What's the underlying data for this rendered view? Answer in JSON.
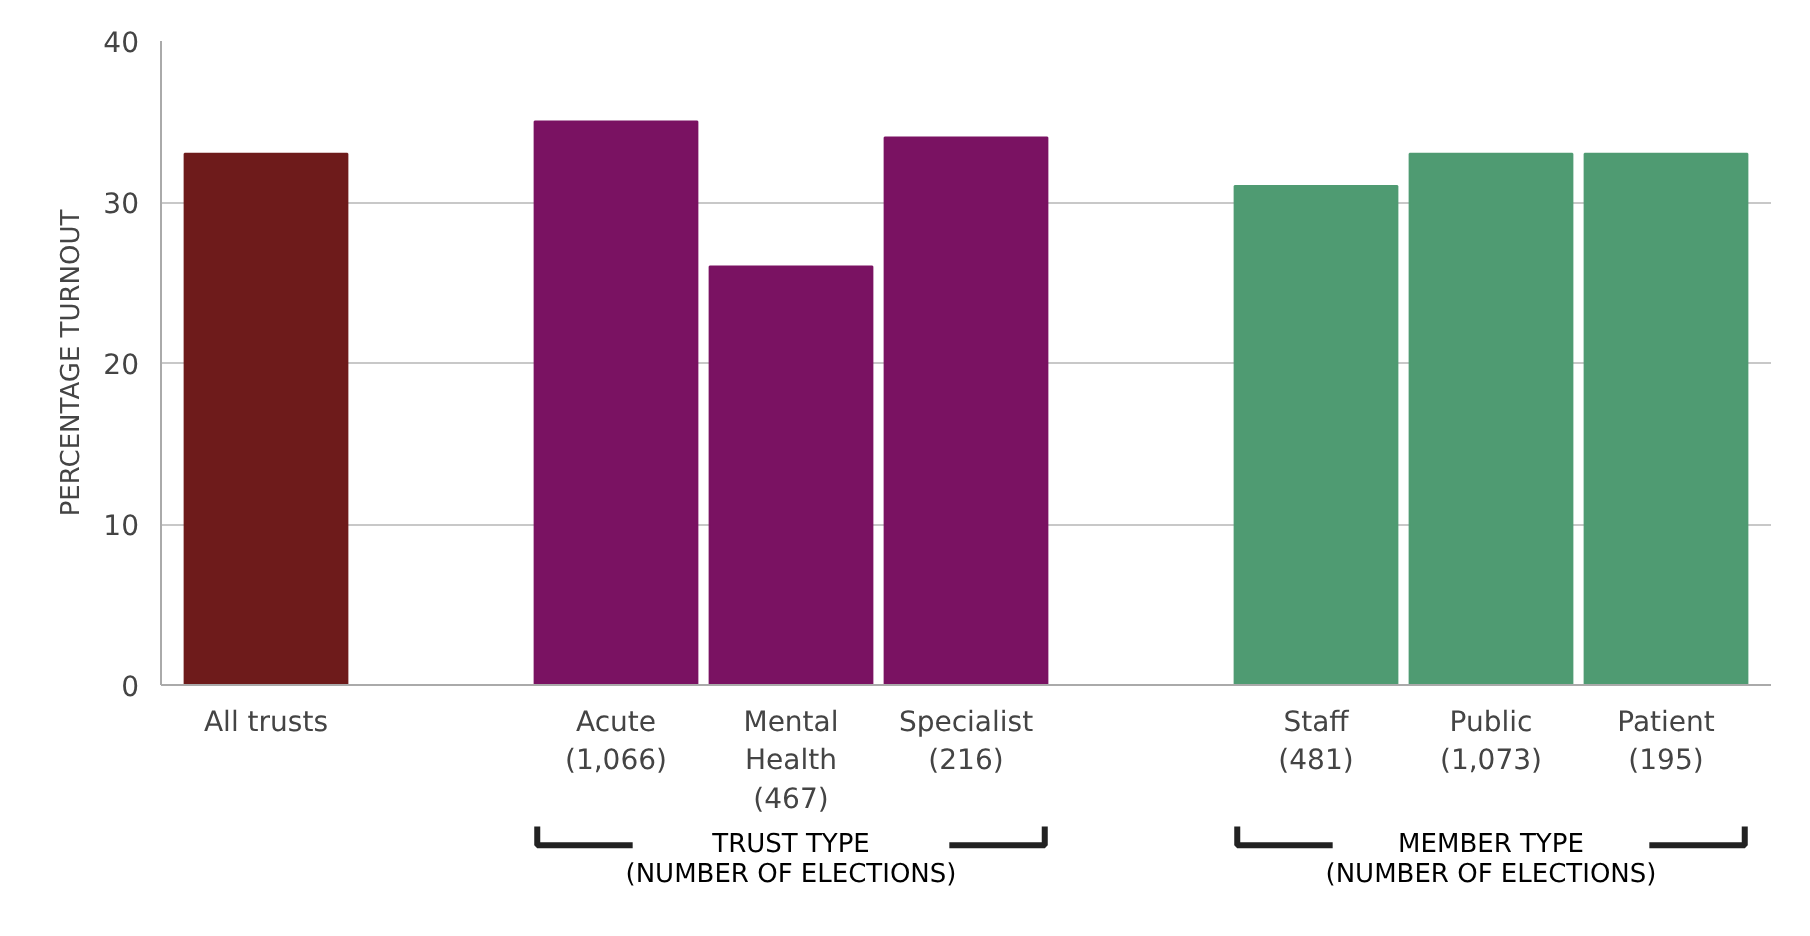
{
  "chart_data": {
    "type": "bar",
    "categories": [
      "All trusts",
      null,
      "Acute\n(1,066)",
      "Mental\nHealth\n(467)",
      "Specialist\n(216)",
      null,
      "Staff\n(481)",
      "Public\n(1,073)",
      "Patient\n(195)"
    ],
    "values": [
      33,
      null,
      35,
      26,
      34,
      null,
      31,
      33,
      33
    ],
    "colors": [
      "#6e1b1b",
      null,
      "#7a1262",
      "#7a1262",
      "#7a1262",
      null,
      "#4f9b72",
      "#4f9b72",
      "#4f9b72"
    ],
    "ylabel": "PERCENTAGE TURNOUT",
    "ylim": [
      0,
      40
    ],
    "yticks": [
      0,
      10,
      20,
      30,
      40
    ],
    "grid": "y",
    "annotations": [
      "TRUST TYPE\n(NUMBER OF ELECTIONS)",
      "MEMBER TYPE\n(NUMBER OF ELECTIONS)"
    ]
  }
}
